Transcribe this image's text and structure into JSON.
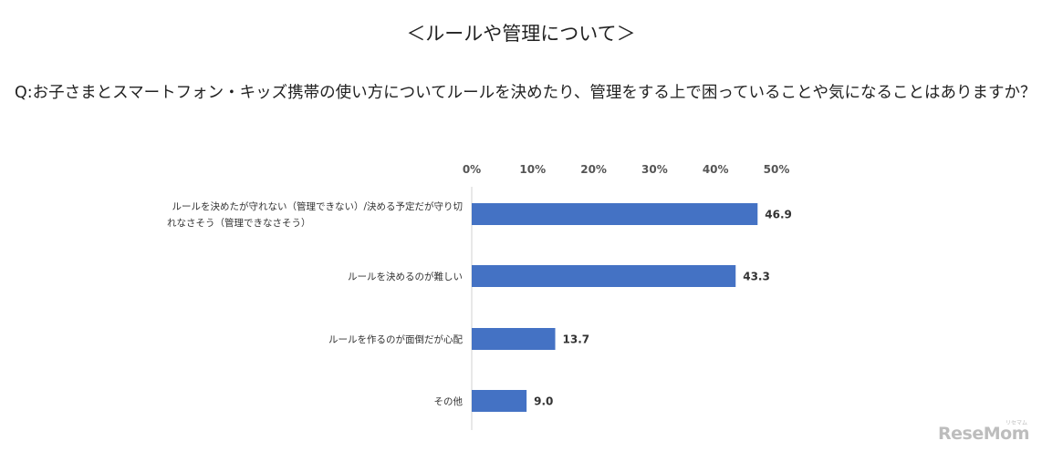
{
  "heading": "＜ルールや管理について＞",
  "question": "Q:お子さまとスマートフォン・キッズ携帯の使い方についてルールを決めたり、管理をする上で困っていることや気になることはありますか？",
  "chart_data": {
    "type": "bar",
    "orientation": "horizontal",
    "title": "",
    "xlabel": "",
    "ylabel": "",
    "xlim": [
      0,
      50
    ],
    "ticks": [
      "0%",
      "10%",
      "20%",
      "30%",
      "40%",
      "50%"
    ],
    "tick_values": [
      0,
      10,
      20,
      30,
      40,
      50
    ],
    "axis_position": "top",
    "grid": false,
    "categories": [
      [
        "ルールを決めたが守れない（管理できない）/決める予定だが守り切",
        "れなさそう（管理できなさそう）"
      ],
      [
        "ルールを決めるのが難しい"
      ],
      [
        "ルールを作るのが面倒だが心配"
      ],
      [
        "その他"
      ]
    ],
    "values": [
      46.9,
      43.3,
      13.7,
      9.0
    ],
    "value_labels": [
      "46.9",
      "43.3",
      "13.7",
      "9.0"
    ],
    "bar_color": "#4472c4"
  },
  "watermark": {
    "text": "ReseMom",
    "kana": "リセマム"
  }
}
